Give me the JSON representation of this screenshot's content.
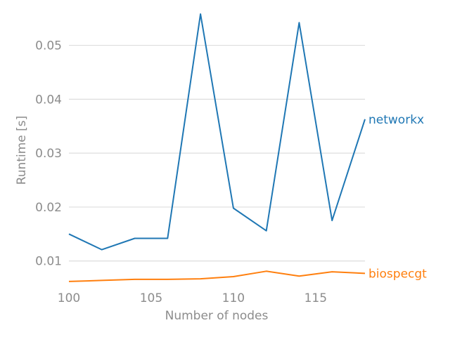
{
  "chart_data": {
    "type": "line",
    "title": "",
    "xlabel": "Number of nodes",
    "ylabel": "Runtime [s]",
    "xlim": [
      100,
      118
    ],
    "ylim": [
      0.0058,
      0.0558
    ],
    "xticks": [
      100,
      105,
      110,
      115
    ],
    "yticks": [
      0.01,
      0.02,
      0.03,
      0.04,
      0.05
    ],
    "xtick_labels": [
      "100",
      "105",
      "110",
      "115"
    ],
    "ytick_labels": [
      "0.01",
      "0.02",
      "0.03",
      "0.04",
      "0.05"
    ],
    "grid": "horizontal",
    "legend": "labels at right end of lines",
    "x": [
      100,
      102,
      104,
      106,
      108,
      110,
      112,
      114,
      116,
      118
    ],
    "series": [
      {
        "name": "networkx",
        "color": "#1f77b4",
        "values": [
          0.015,
          0.0121,
          0.0142,
          0.0142,
          0.0558,
          0.0198,
          0.0156,
          0.0542,
          0.0175,
          0.0363
        ]
      },
      {
        "name": "biospecgt",
        "color": "#ff7f0e",
        "values": [
          0.0062,
          0.0064,
          0.0066,
          0.0066,
          0.0067,
          0.0071,
          0.0081,
          0.0072,
          0.008,
          0.0077
        ]
      }
    ]
  }
}
